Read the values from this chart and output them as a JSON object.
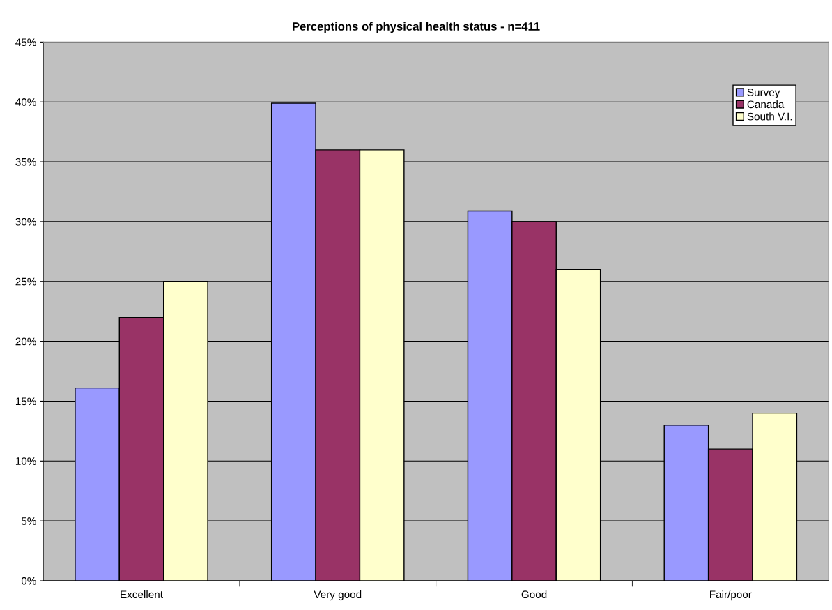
{
  "chart_data": {
    "type": "bar",
    "title": "Perceptions of physical health status - n=411",
    "categories": [
      "Excellent",
      "Very good",
      "Good",
      "Fair/poor"
    ],
    "series": [
      {
        "name": "Survey",
        "color": "#9999ff",
        "values": [
          16.1,
          39.9,
          30.9,
          13
        ]
      },
      {
        "name": "Canada",
        "color": "#993366",
        "values": [
          22,
          36,
          30,
          11
        ]
      },
      {
        "name": "South V.I.",
        "color": "#ffffcc",
        "values": [
          25,
          36,
          26,
          14
        ]
      }
    ],
    "ylim": [
      0,
      45
    ],
    "yticks": [
      {
        "value": 0,
        "label": "0%"
      },
      {
        "value": 5,
        "label": "5%"
      },
      {
        "value": 10,
        "label": "10%"
      },
      {
        "value": 15,
        "label": "15%"
      },
      {
        "value": 20,
        "label": "20%"
      },
      {
        "value": 25,
        "label": "25%"
      },
      {
        "value": 30,
        "label": "30%"
      },
      {
        "value": 35,
        "label": "35%"
      },
      {
        "value": 40,
        "label": "40%"
      },
      {
        "value": 45,
        "label": "45%"
      }
    ],
    "grid": "y",
    "legend": "top right"
  }
}
